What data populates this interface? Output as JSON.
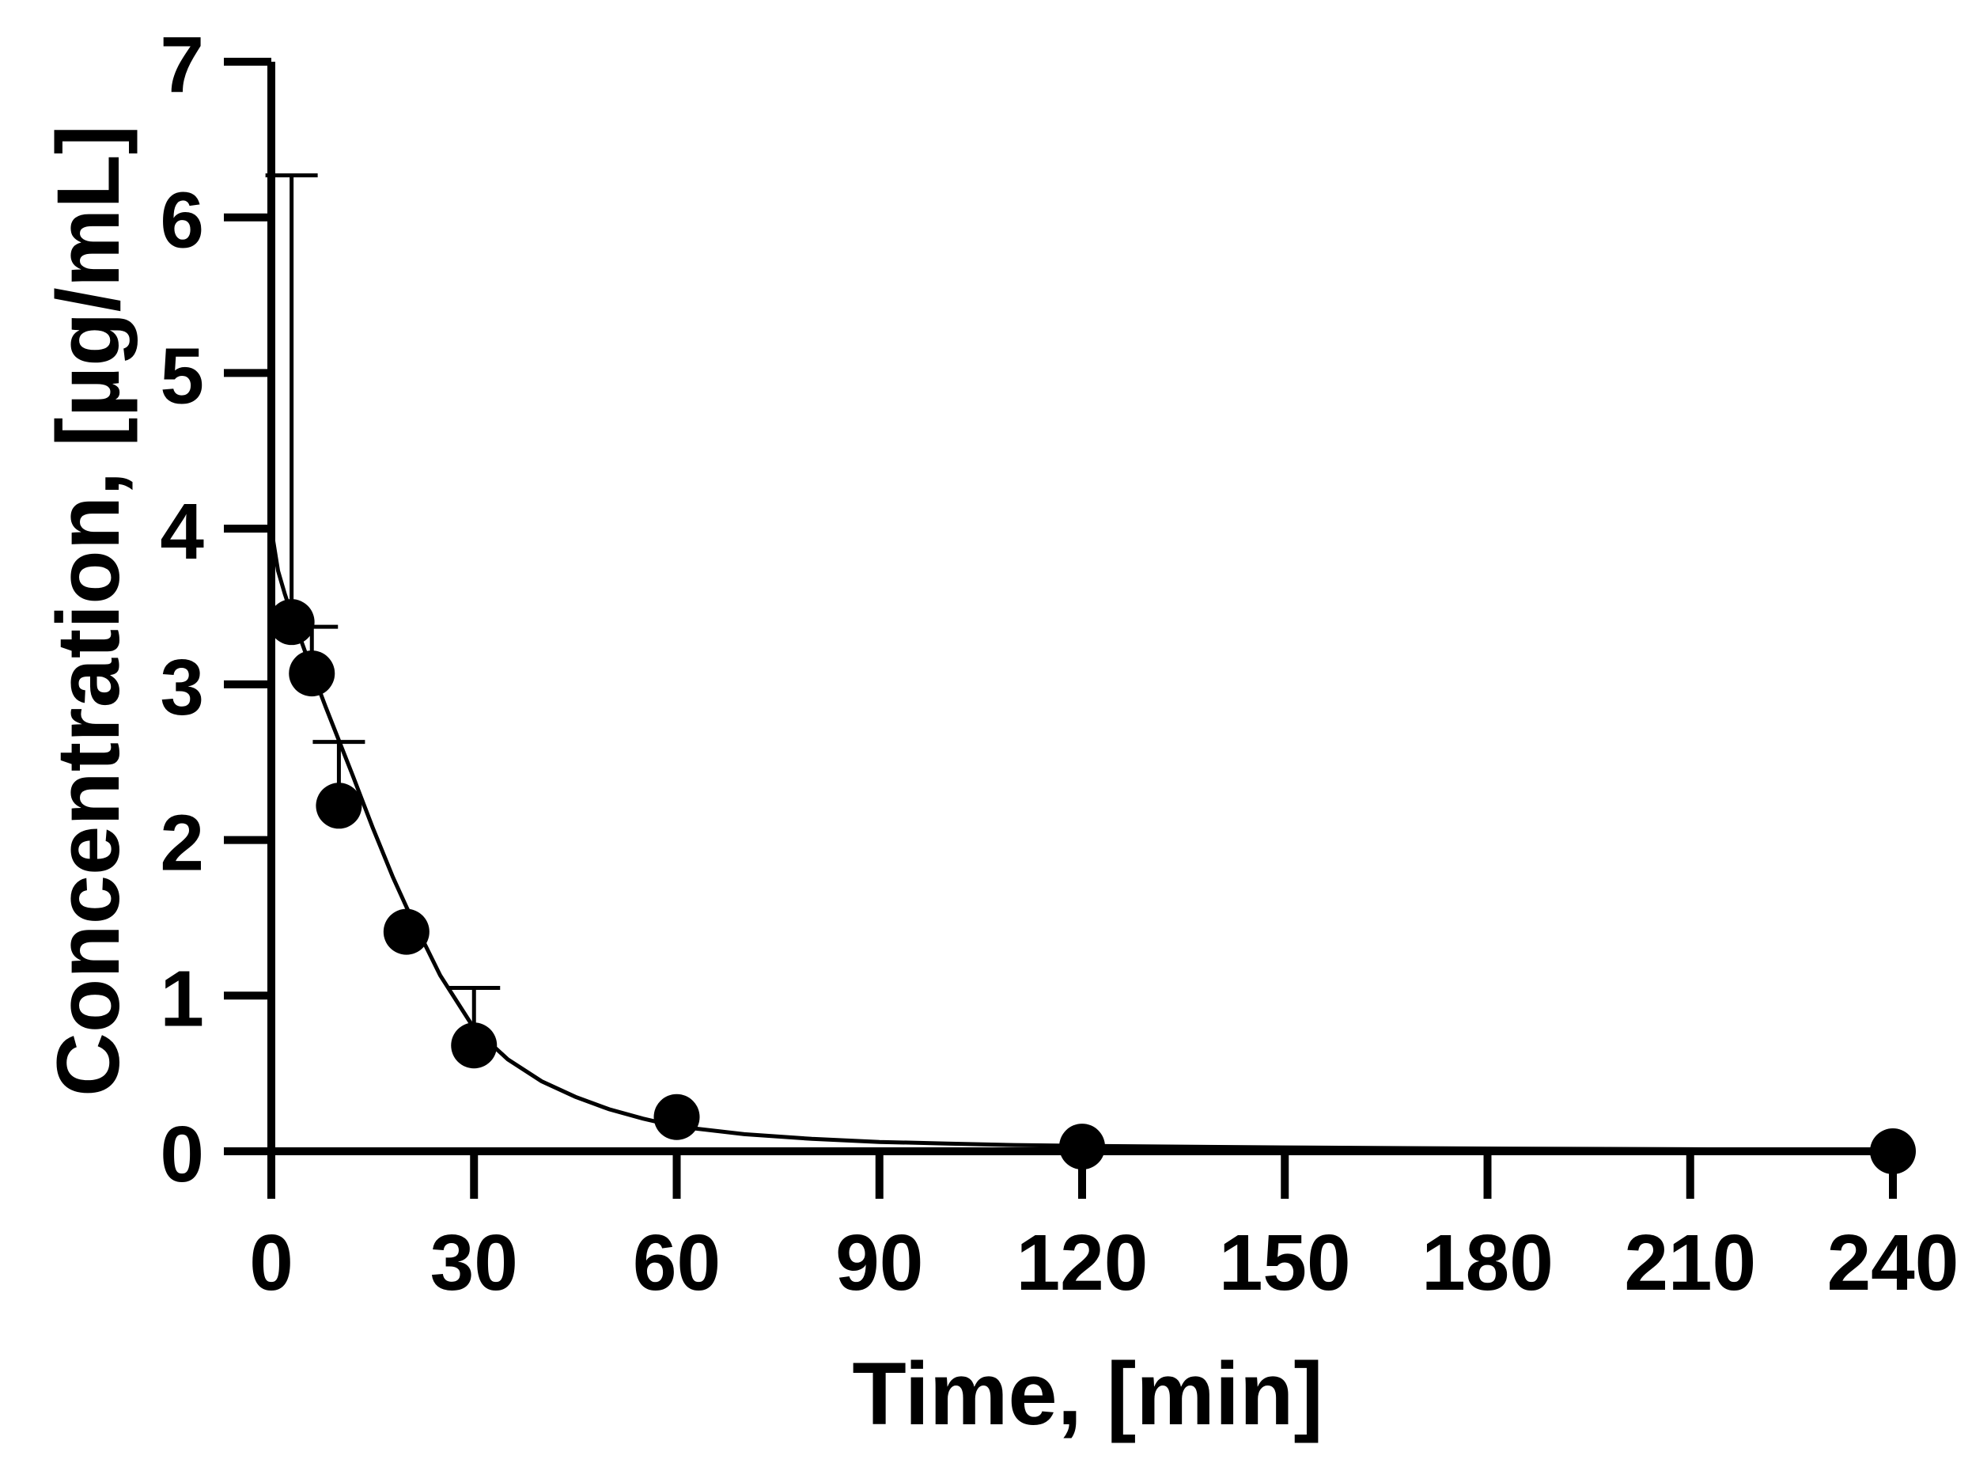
{
  "chart_data": {
    "type": "scatter",
    "title": "",
    "xlabel": "Time, [min]",
    "ylabel": "Concentration, [µg/mL]",
    "xlim": [
      0,
      240
    ],
    "ylim": [
      0,
      7
    ],
    "x_ticks": [
      0,
      30,
      60,
      90,
      120,
      150,
      180,
      210,
      240
    ],
    "y_ticks": [
      0,
      1,
      2,
      3,
      4,
      5,
      6,
      7
    ],
    "grid": false,
    "legend": "none",
    "colors": {
      "marker": "#000000",
      "line": "#000000",
      "axis": "#000000"
    },
    "series": [
      {
        "marker": "filled-circle",
        "x": [
          3,
          6,
          10,
          20,
          30,
          60,
          120,
          240
        ],
        "y": [
          3.4,
          3.07,
          2.22,
          1.41,
          0.68,
          0.22,
          0.03,
          0.0
        ],
        "error_upper": [
          6.27,
          3.37,
          2.63,
          null,
          1.05,
          null,
          null,
          null
        ]
      }
    ],
    "fit_curve": {
      "x": [
        0,
        1,
        2,
        3,
        4,
        5,
        6,
        8,
        10,
        12,
        15,
        18,
        20,
        25,
        30,
        35,
        40,
        45,
        50,
        55,
        60,
        70,
        80,
        90,
        100,
        110,
        120,
        150,
        180,
        210,
        240
      ],
      "y": [
        4.0,
        3.73,
        3.58,
        3.45,
        3.33,
        3.21,
        3.09,
        2.86,
        2.64,
        2.42,
        2.08,
        1.76,
        1.57,
        1.13,
        0.79,
        0.59,
        0.45,
        0.35,
        0.27,
        0.21,
        0.16,
        0.11,
        0.08,
        0.06,
        0.05,
        0.04,
        0.035,
        0.025,
        0.018,
        0.013,
        0.01
      ]
    }
  }
}
